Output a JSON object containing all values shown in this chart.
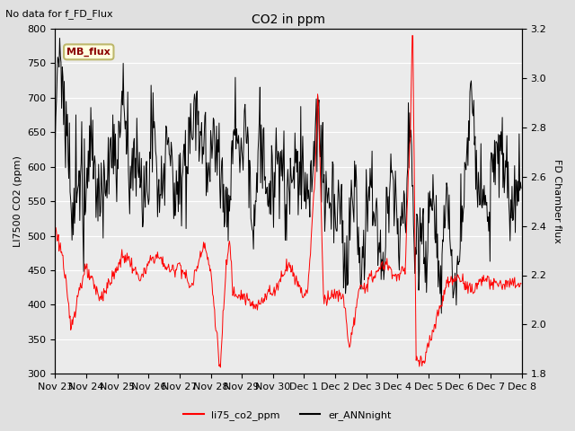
{
  "title": "CO2 in ppm",
  "top_left_text": "No data for f_FD_Flux",
  "ylabel_left": "LI7500 CO2 (ppm)",
  "ylabel_right": "FD Chamber flux",
  "ylim_left": [
    300,
    800
  ],
  "ylim_right": [
    1.8,
    3.2
  ],
  "xtick_labels": [
    "Nov 23",
    "Nov 24",
    "Nov 25",
    "Nov 26",
    "Nov 27",
    "Nov 28",
    "Nov 29",
    "Nov 30",
    "Dec 1",
    "Dec 2",
    "Dec 3",
    "Dec 4",
    "Dec 5",
    "Dec 6",
    "Dec 7",
    "Dec 8"
  ],
  "legend_labels": [
    "li75_co2_ppm",
    "er_ANNnight"
  ],
  "mb_flux_label": "MB_flux",
  "background_color": "#e0e0e0",
  "plot_bg_color": "#ebebeb",
  "red_line_color": "red",
  "black_line_color": "black",
  "grid_color": "#ffffff",
  "yticks_left": [
    300,
    350,
    400,
    450,
    500,
    550,
    600,
    650,
    700,
    750,
    800
  ],
  "yticks_right": [
    1.8,
    2.0,
    2.2,
    2.4,
    2.6,
    2.8,
    3.0,
    3.2
  ]
}
